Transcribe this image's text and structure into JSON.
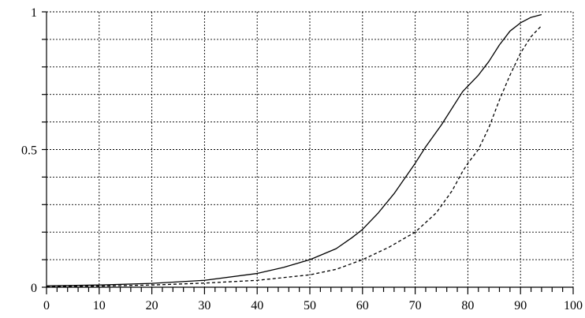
{
  "chart_data": {
    "type": "line",
    "title": "",
    "xlabel": "",
    "ylabel": "",
    "xlim": [
      0,
      100
    ],
    "ylim": [
      0,
      1
    ],
    "grid": true,
    "x_ticks": [
      0,
      10,
      20,
      30,
      40,
      50,
      60,
      70,
      80,
      90,
      100
    ],
    "x_tick_labels": [
      "0",
      "10",
      "20",
      "30",
      "40",
      "50",
      "60",
      "70",
      "80",
      "90",
      "100"
    ],
    "x_minor_step": 2,
    "y_ticks": [
      0,
      0.5,
      1
    ],
    "y_tick_labels": [
      "0",
      "0.5",
      "1"
    ],
    "y_grid_step": 0.1,
    "series": [
      {
        "style": "solid",
        "color": "#000000",
        "x": [
          0,
          10,
          20,
          30,
          40,
          45,
          50,
          55,
          58,
          60,
          63,
          66,
          70,
          72,
          75,
          78,
          79,
          80,
          82,
          84,
          86,
          88,
          90,
          92,
          94
        ],
        "y": [
          0.005,
          0.008,
          0.014,
          0.025,
          0.05,
          0.072,
          0.1,
          0.14,
          0.18,
          0.21,
          0.27,
          0.34,
          0.45,
          0.51,
          0.59,
          0.68,
          0.71,
          0.73,
          0.77,
          0.82,
          0.88,
          0.93,
          0.96,
          0.98,
          0.99
        ]
      },
      {
        "style": "dashed",
        "color": "#000000",
        "x": [
          0,
          10,
          20,
          30,
          40,
          50,
          55,
          60,
          65,
          70,
          74,
          77,
          79,
          80,
          82,
          84,
          86,
          88,
          90,
          92,
          94
        ],
        "y": [
          0.002,
          0.004,
          0.008,
          0.015,
          0.025,
          0.045,
          0.065,
          0.1,
          0.145,
          0.2,
          0.27,
          0.35,
          0.42,
          0.45,
          0.5,
          0.58,
          0.68,
          0.77,
          0.85,
          0.91,
          0.95
        ]
      }
    ]
  }
}
